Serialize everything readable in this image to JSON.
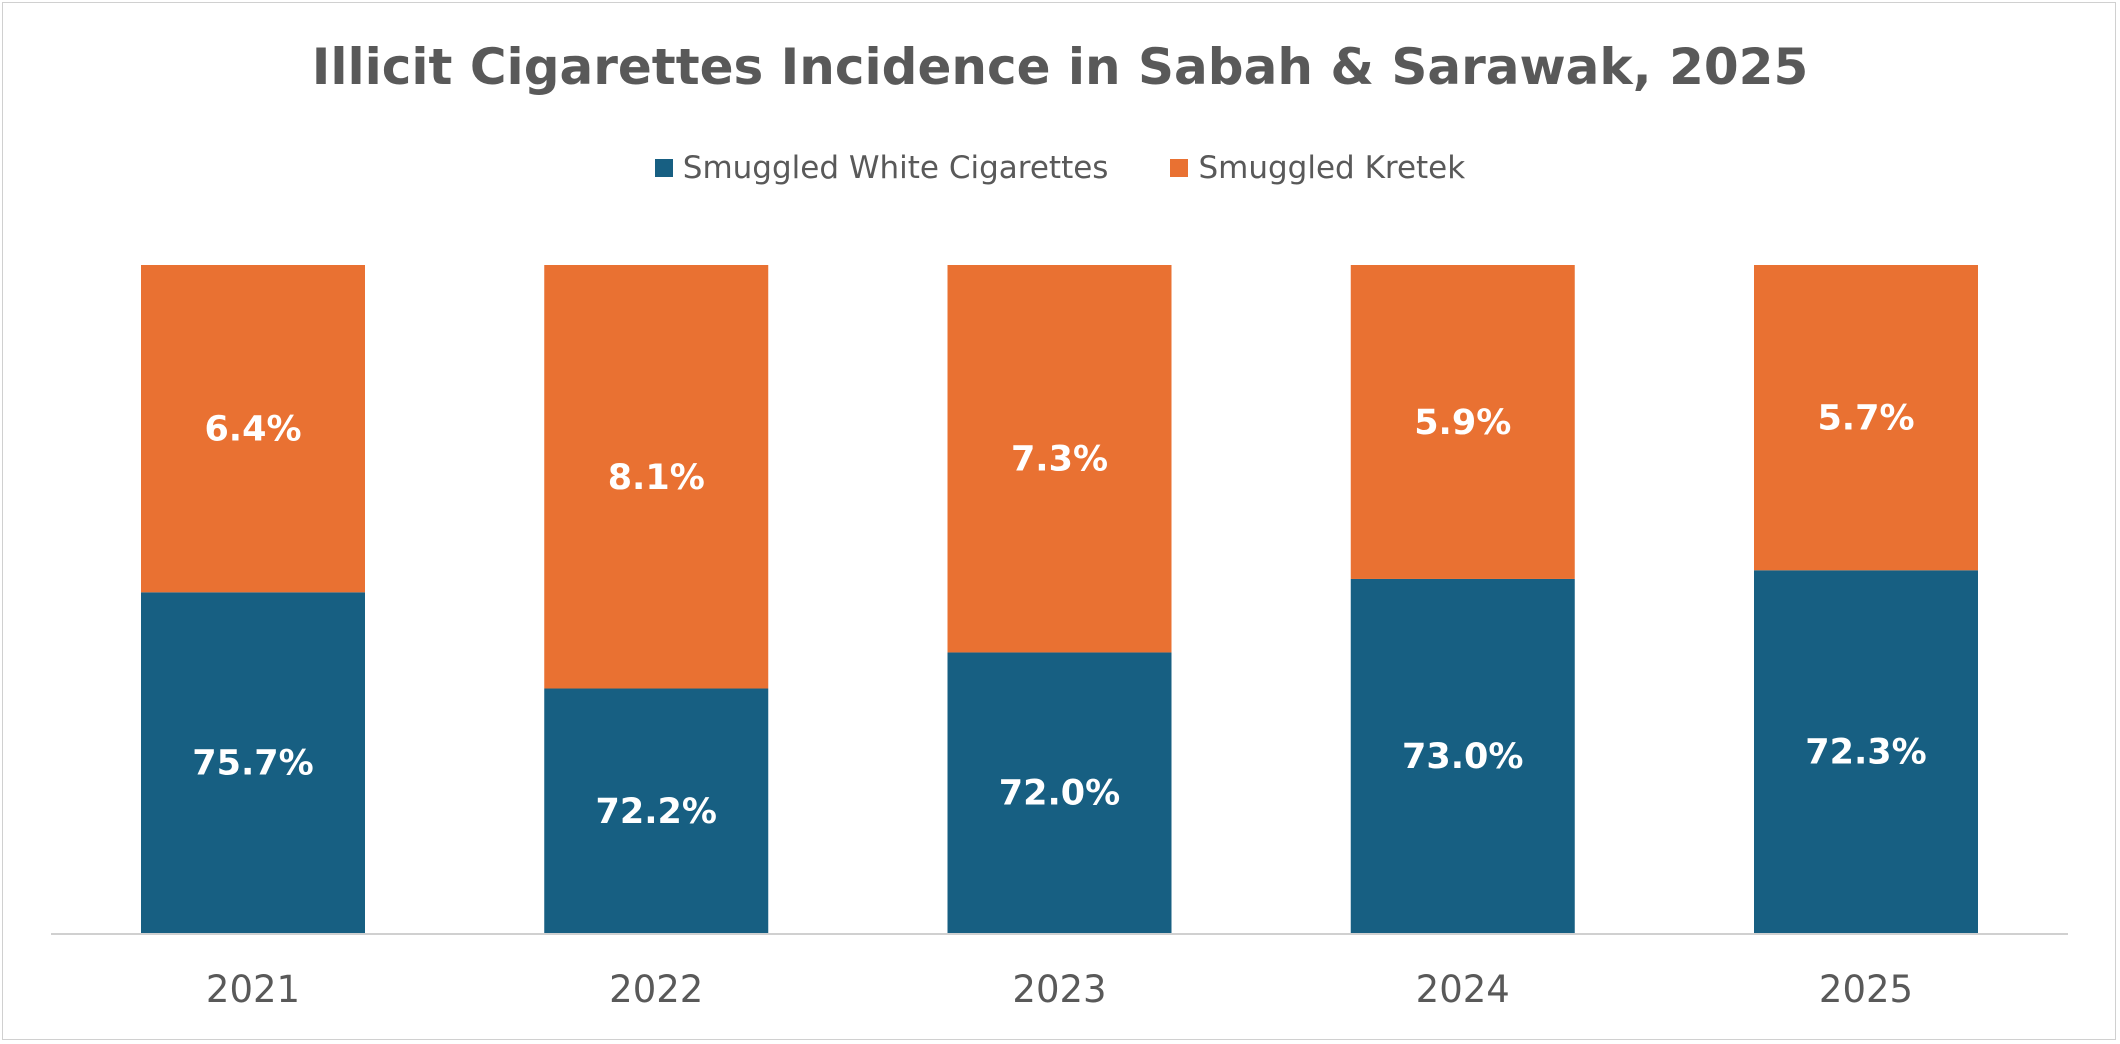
{
  "chart_data": {
    "type": "bar",
    "stacked": true,
    "title": "Illicit Cigarettes Incidence in Sabah & Sarawak, 2025",
    "categories": [
      "2021",
      "2022",
      "2023",
      "2024",
      "2025"
    ],
    "series": [
      {
        "name": "Smuggled White Cigarettes",
        "color": "#175F82",
        "values": [
          75.7,
          72.2,
          72.0,
          73.0,
          72.3
        ],
        "labels": [
          "75.7%",
          "72.2%",
          "72.0%",
          "73.0%",
          "72.3%"
        ]
      },
      {
        "name": "Smuggled Kretek",
        "color": "#E97132",
        "values": [
          6.4,
          8.1,
          7.3,
          5.9,
          5.7
        ],
        "labels": [
          "6.4%",
          "8.1%",
          "7.3%",
          "5.9%",
          "5.7%"
        ]
      }
    ],
    "white_share_of_bar": [
      0.51,
      0.366,
      0.42,
      0.53,
      0.543
    ],
    "legend_position": "top",
    "grid": false,
    "xlabel": "",
    "ylabel": ""
  }
}
